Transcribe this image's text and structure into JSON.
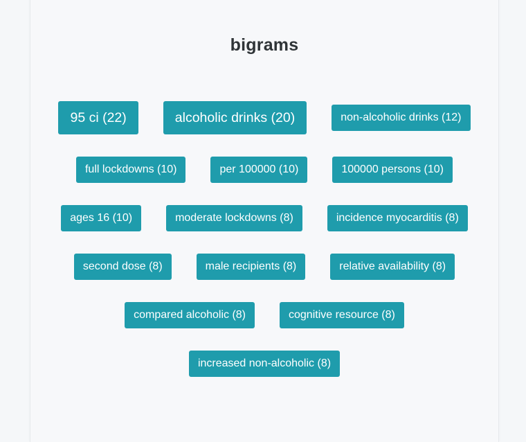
{
  "title": "bigrams",
  "rows": [
    [
      {
        "label": "95 ci (22)",
        "size": "lg"
      },
      {
        "label": "alcoholic drinks (20)",
        "size": "lg"
      },
      {
        "label": "non-alcoholic drinks (12)",
        "size": "sm"
      }
    ],
    [
      {
        "label": "full lockdowns (10)",
        "size": "sm"
      },
      {
        "label": "per 100000 (10)",
        "size": "sm"
      },
      {
        "label": "100000 persons (10)",
        "size": "sm"
      }
    ],
    [
      {
        "label": "ages 16 (10)",
        "size": "sm"
      },
      {
        "label": "moderate lockdowns (8)",
        "size": "sm"
      },
      {
        "label": "incidence myocarditis (8)",
        "size": "sm"
      }
    ],
    [
      {
        "label": "second dose (8)",
        "size": "sm"
      },
      {
        "label": "male recipients (8)",
        "size": "sm"
      },
      {
        "label": "relative availability (8)",
        "size": "sm"
      }
    ],
    [
      {
        "label": "compared alcoholic (8)",
        "size": "sm"
      },
      {
        "label": "cognitive resource (8)",
        "size": "sm"
      }
    ],
    [
      {
        "label": "increased non-alcoholic (8)",
        "size": "sm"
      }
    ]
  ],
  "colors": {
    "tag_background": "#1f9cac",
    "tag_text": "#ffffff",
    "title_text": "#2f3437",
    "page_background": "#f5f7f9"
  }
}
